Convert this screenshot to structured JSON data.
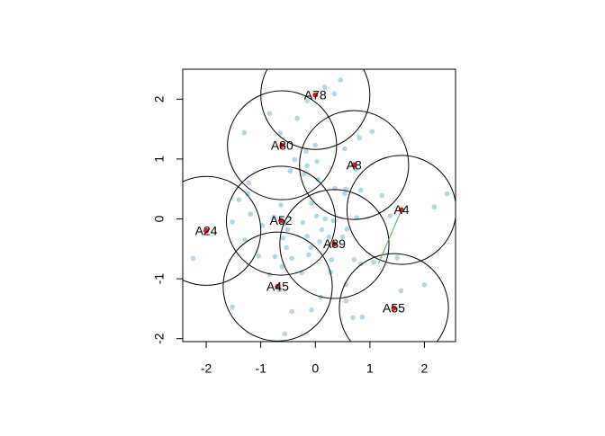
{
  "chart_data": {
    "type": "scatter",
    "xlim": [
      -2.43,
      2.57
    ],
    "ylim": [
      -2.05,
      2.5
    ],
    "xticks": [
      -2,
      -1,
      0,
      1,
      2
    ],
    "yticks": [
      -2,
      -1,
      0,
      1,
      2
    ],
    "radius": 1,
    "points": {
      "color": "#add8e6",
      "x": [
        0.46,
        0.17,
        0.35,
        -0.15,
        -0.84,
        -0.33,
        -1.3,
        -0.64,
        0.0,
        1.04,
        0.81,
        0.54,
        -0.17,
        -0.38,
        0.03,
        -0.15,
        0.74,
        -0.21,
        -0.46,
        0.05,
        -1.22,
        0.56,
        1.22,
        0.36,
        0.54,
        0.83,
        2.41,
        -1.4,
        -1.24,
        2.18,
        -0.07,
        -0.63,
        -1.19,
        1.37,
        -0.76,
        0.76,
        0.33,
        -1.52,
        -0.97,
        -0.56,
        0.02,
        0.18,
        -0.23,
        0.58,
        0.12,
        -0.51,
        -0.15,
        -0.59,
        -1.29,
        0.25,
        0.08,
        0.5,
        -0.53,
        -0.74,
        -0.08,
        -0.12,
        0.3,
        -0.43,
        0.71,
        -1.04,
        -2.24,
        0.83,
        1.07,
        1.5,
        -0.61,
        -0.84,
        -0.25,
        0.28,
        0.56,
        2.0,
        -0.66,
        1.57,
        0.1,
        -1.52,
        -0.43,
        -0.07,
        0.56,
        0.69,
        0.86,
        -0.56
      ],
      "y": [
        2.32,
        2.2,
        2.09,
        1.97,
        1.76,
        1.68,
        1.44,
        1.43,
        1.23,
        1.46,
        1.35,
        1.17,
        1.13,
        0.99,
        0.96,
        0.89,
        0.83,
        0.75,
        0.8,
        0.66,
        0.6,
        0.5,
        0.39,
        0.51,
        0.42,
        0.48,
        0.42,
        0.32,
        0.42,
        0.2,
        0.26,
        0.23,
        0.08,
        0.05,
        0.03,
        0.02,
        -0.03,
        -0.05,
        -0.11,
        -0.08,
        0.05,
        0.0,
        -0.06,
        -0.17,
        -0.18,
        -0.18,
        -0.29,
        -0.32,
        -0.35,
        -0.3,
        -0.38,
        -0.3,
        -0.48,
        -0.63,
        -0.48,
        -0.6,
        -0.68,
        -0.66,
        -0.68,
        -0.62,
        -0.66,
        -0.75,
        -0.72,
        -0.65,
        -0.8,
        -0.93,
        -0.9,
        -0.89,
        -1.1,
        -1.1,
        -1.19,
        -1.2,
        -1.31,
        -1.47,
        -1.55,
        -1.52,
        -1.37,
        -1.65,
        -1.64,
        -1.92
      ]
    },
    "centers": {
      "color": "#e41a1c",
      "labels": [
        "A78",
        "A80",
        "A8",
        "A4",
        "A52",
        "A24",
        "A89",
        "A45",
        "A55"
      ],
      "x": [
        0.0,
        -0.61,
        0.71,
        1.58,
        -0.63,
        -2.0,
        0.35,
        -0.69,
        1.44
      ],
      "y": [
        2.07,
        1.23,
        0.9,
        0.15,
        -0.03,
        -0.2,
        -0.42,
        -1.13,
        -1.49
      ]
    },
    "segment": {
      "color": "#4daf4a",
      "x": [
        1.58,
        1.16
      ],
      "y": [
        0.15,
        -0.74
      ]
    }
  }
}
